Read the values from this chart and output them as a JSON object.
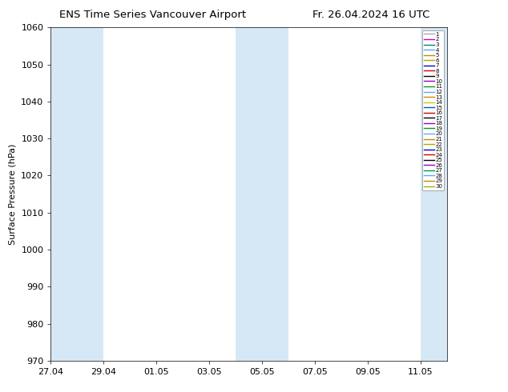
{
  "title_left": "ENS Time Series Vancouver Airport",
  "title_right": "Fr. 26.04.2024 16 UTC",
  "ylabel": "Surface Pressure (hPa)",
  "ylim": [
    970,
    1060
  ],
  "yticks": [
    970,
    980,
    990,
    1000,
    1010,
    1020,
    1030,
    1040,
    1050,
    1060
  ],
  "xtick_dates": [
    "2024-04-27",
    "2024-04-29",
    "2024-05-01",
    "2024-05-03",
    "2024-05-05",
    "2024-05-07",
    "2024-05-09",
    "2024-05-11"
  ],
  "xtick_labels": [
    "27.04",
    "29.04",
    "01.05",
    "03.05",
    "05.05",
    "07.05",
    "09.05",
    "11.05"
  ],
  "xlim_start": "2024-04-27",
  "xlim_end": "2024-05-12",
  "shaded_bands": [
    {
      "xmin": "2024-04-27",
      "xmax": "2024-04-29"
    },
    {
      "xmin": "2024-05-04",
      "xmax": "2024-05-06"
    },
    {
      "xmin": "2024-05-11",
      "xmax": "2024-05-12"
    }
  ],
  "shade_color": "#d6e8f5",
  "n_members": 30,
  "member_colors": [
    "#aaaaaa",
    "#cc00cc",
    "#008080",
    "#44aaff",
    "#cc8800",
    "#aaaa00",
    "#0000cc",
    "#cc0000",
    "#000000",
    "#9900cc",
    "#009933",
    "#55aaff",
    "#cc8800",
    "#cccc00",
    "#0055cc",
    "#cc0000",
    "#000000",
    "#9900cc",
    "#009933",
    "#55aaff",
    "#cc8800",
    "#aaaa00",
    "#0000cc",
    "#cc0000",
    "#000000",
    "#9900cc",
    "#009933",
    "#55aaff",
    "#cc8800",
    "#aaaa00"
  ],
  "background_color": "#ffffff",
  "legend_fontsize": 5.0,
  "title_fontsize": 9.5,
  "ylabel_fontsize": 8,
  "tick_fontsize": 8
}
